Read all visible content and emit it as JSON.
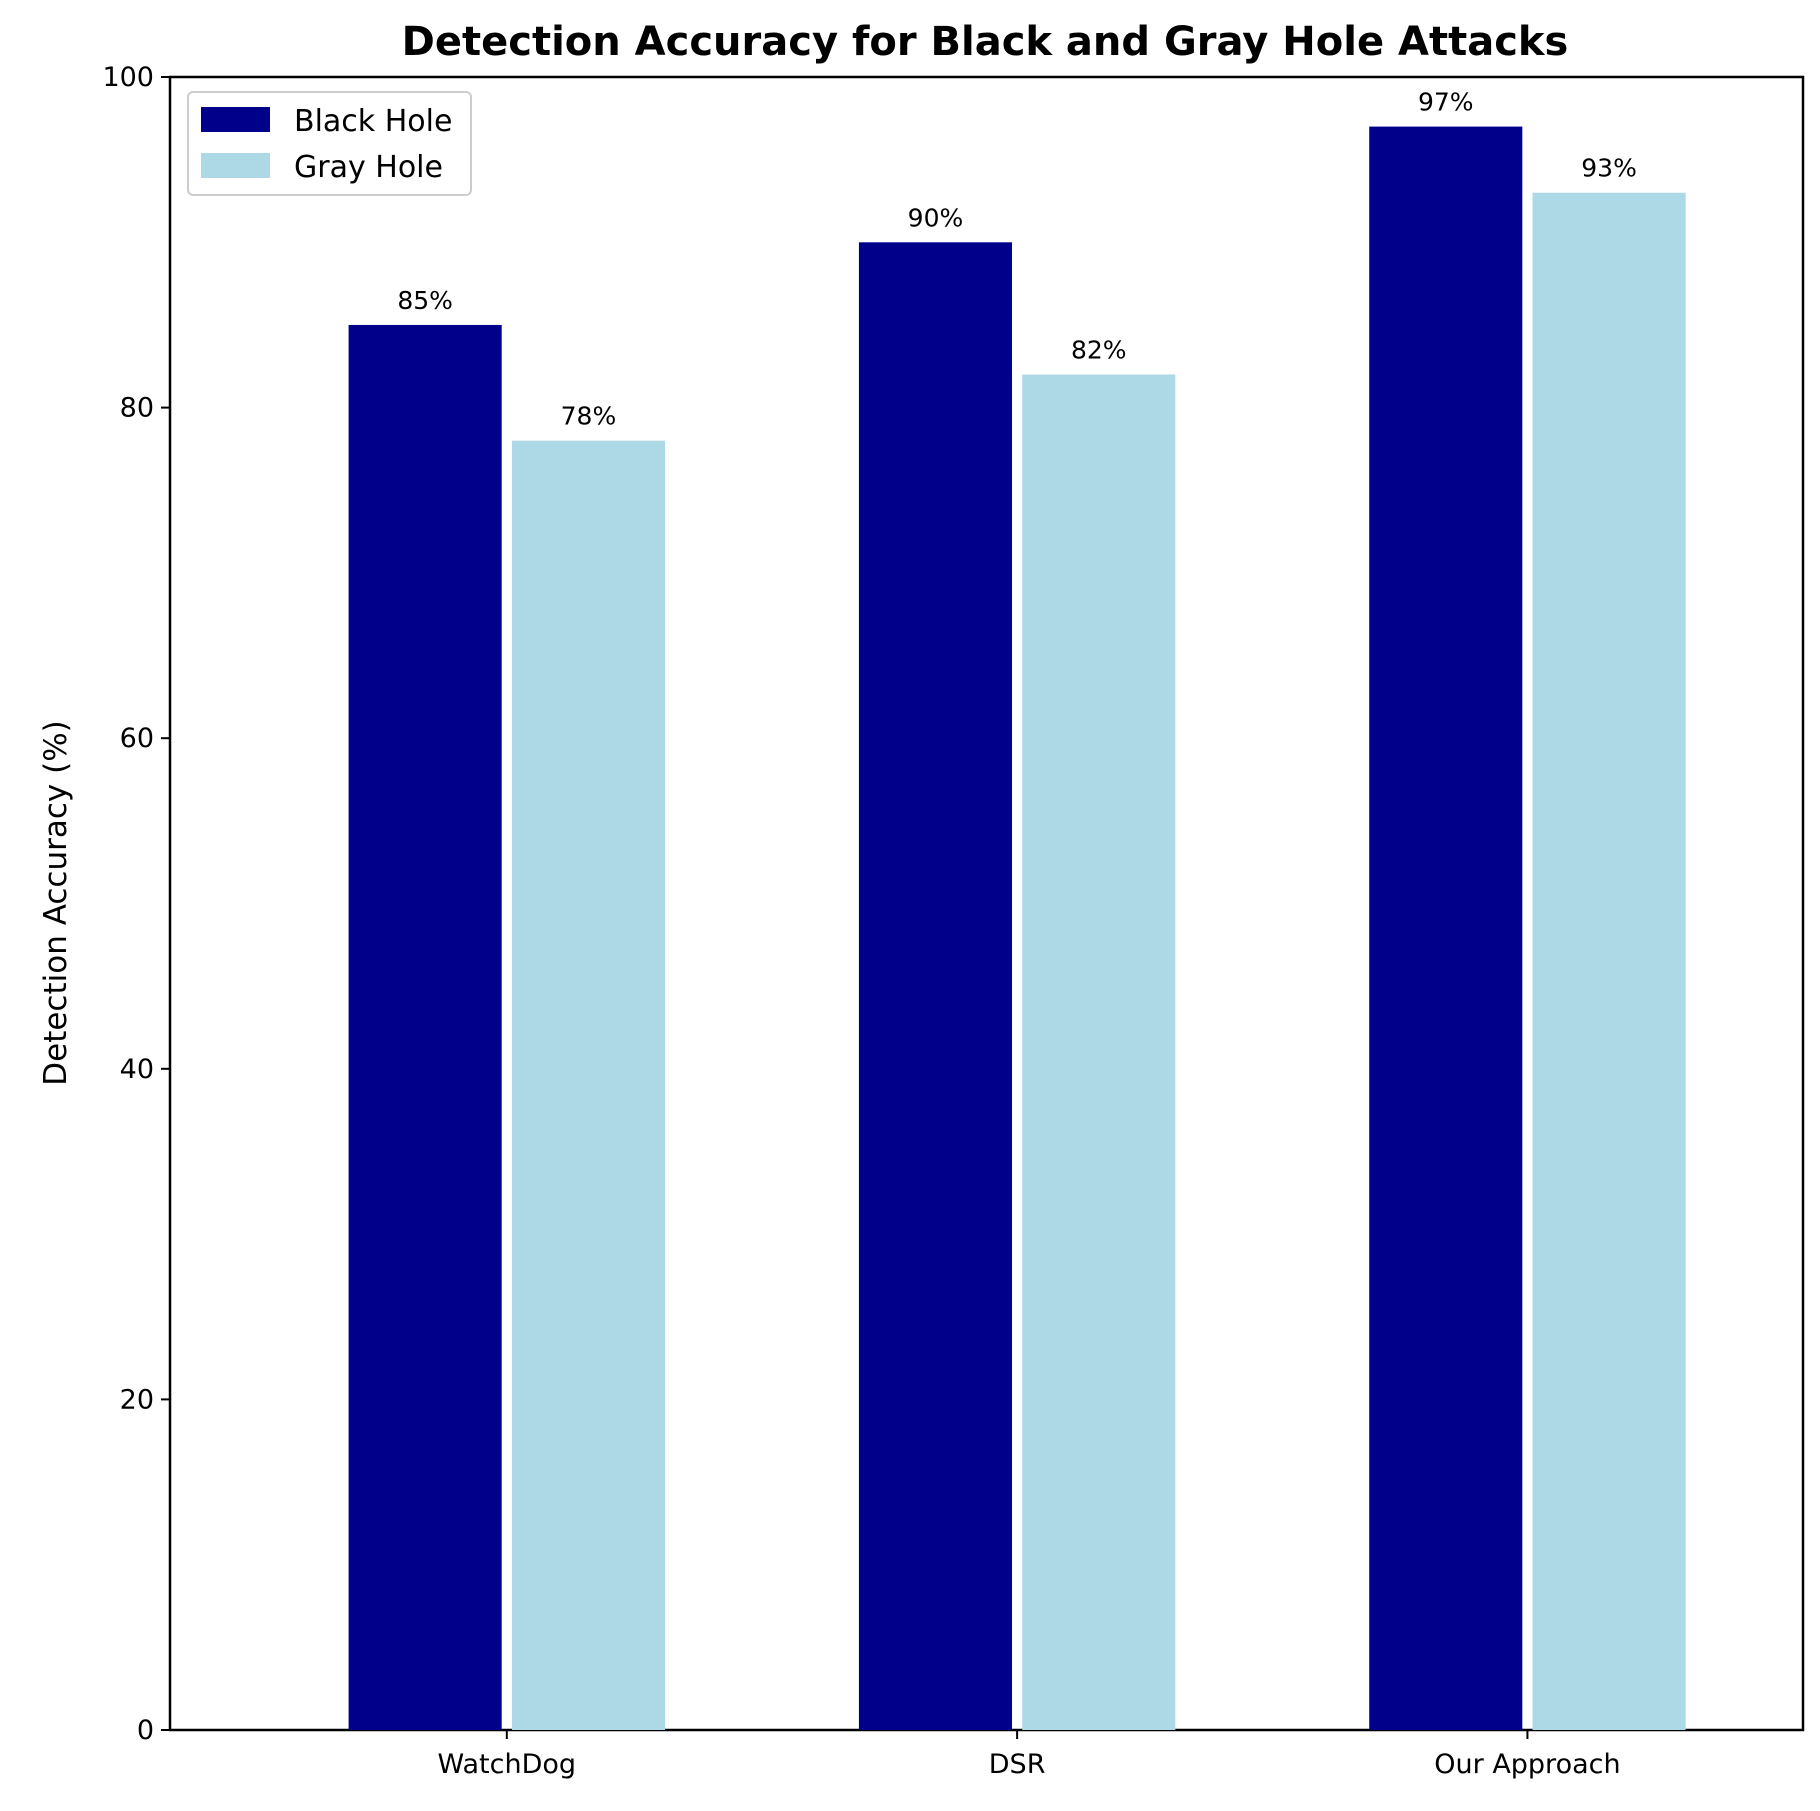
{
  "chart_data": {
    "type": "bar",
    "title": "Detection Accuracy for Black and Gray Hole Attacks",
    "xlabel": "",
    "ylabel": "Detection Accuracy (%)",
    "categories": [
      "WatchDog",
      "DSR",
      "Our Approach"
    ],
    "series": [
      {
        "name": "Black Hole",
        "color": "#00008b",
        "values": [
          85,
          90,
          97
        ],
        "labels": [
          "85%",
          "90%",
          "97%"
        ]
      },
      {
        "name": "Gray Hole",
        "color": "#add8e6",
        "values": [
          78,
          82,
          93
        ],
        "labels": [
          "78%",
          "82%",
          "93%"
        ]
      }
    ],
    "ylim": [
      0,
      100
    ],
    "yticks": [
      0,
      20,
      40,
      60,
      80,
      100
    ],
    "ytick_labels": [
      "0",
      "20",
      "40",
      "60",
      "80",
      "100"
    ],
    "grid": false,
    "legend_position": "top-left"
  }
}
